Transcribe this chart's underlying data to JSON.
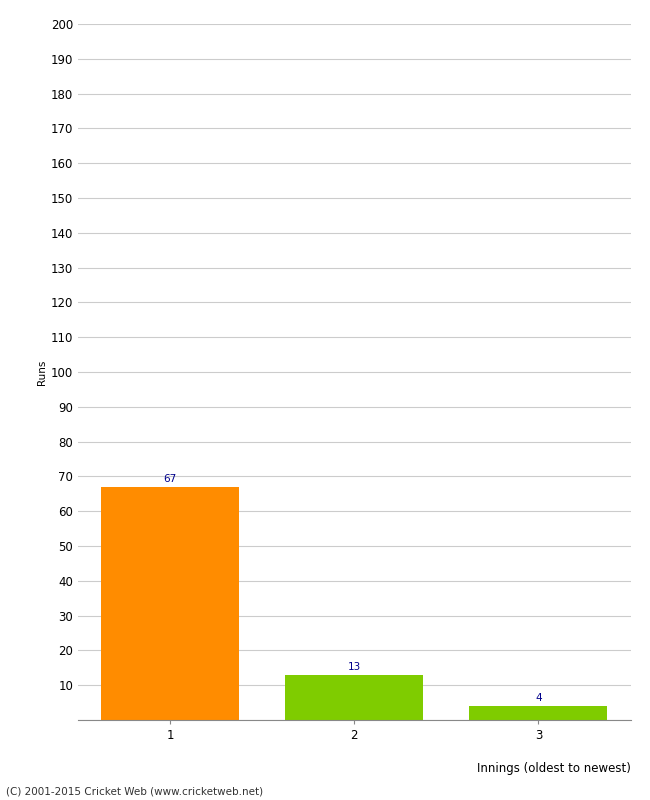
{
  "categories": [
    "1",
    "2",
    "3"
  ],
  "values": [
    67,
    13,
    4
  ],
  "bar_colors": [
    "#FF8C00",
    "#7FCC00",
    "#7FCC00"
  ],
  "ylabel": "Runs",
  "xlabel": "Innings (oldest to newest)",
  "ylim": [
    0,
    200
  ],
  "yticks": [
    0,
    10,
    20,
    30,
    40,
    50,
    60,
    70,
    80,
    90,
    100,
    110,
    120,
    130,
    140,
    150,
    160,
    170,
    180,
    190,
    200
  ],
  "value_label_color": "#00008B",
  "value_label_fontsize": 7.5,
  "footer": "(C) 2001-2015 Cricket Web (www.cricketweb.net)",
  "background_color": "#FFFFFF",
  "grid_color": "#CCCCCC",
  "bar_width": 0.75,
  "tick_label_fontsize": 8.5,
  "ylabel_fontsize": 7.5,
  "xlabel_fontsize": 8.5,
  "footer_fontsize": 7.5
}
